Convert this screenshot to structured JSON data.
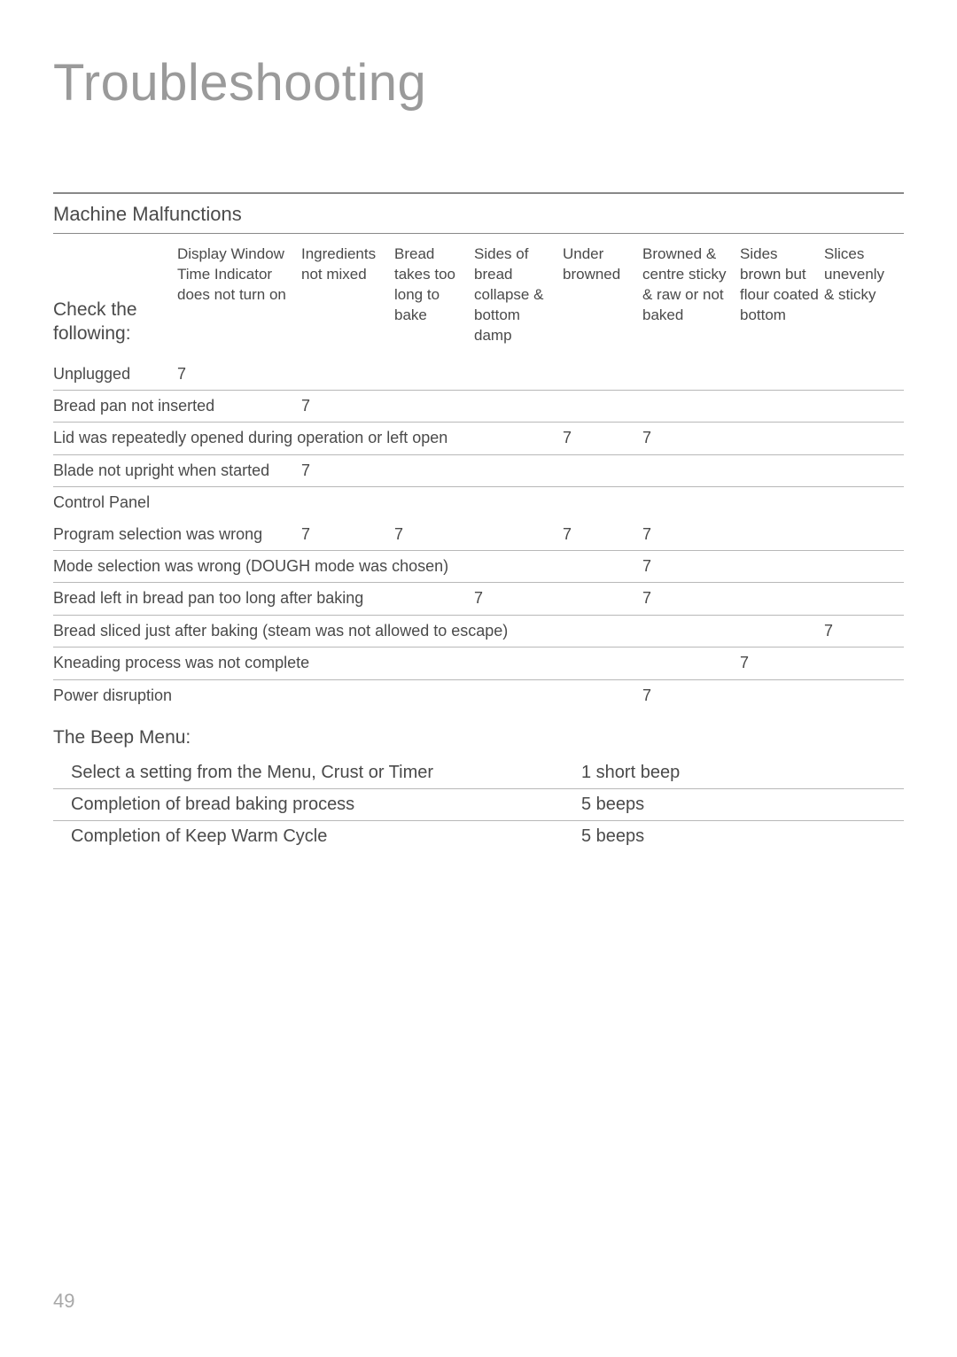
{
  "page": {
    "title": "Troubleshooting",
    "number": "49",
    "colors": {
      "title": "#9a9a9a",
      "text": "#4a4a4a",
      "rule": "#888888",
      "row_border": "#b8b8b8",
      "background": "#ffffff"
    },
    "fonts": {
      "title_size_pt": 44,
      "section_size_pt": 17,
      "header_size_pt": 13,
      "body_size_pt": 14,
      "pagenum_size_pt": 17
    }
  },
  "malfunctions": {
    "section_title": "Machine Malfunctions",
    "row_header": "Check the following:",
    "mark_glyph": "7",
    "columns": [
      "Display Window Time Indicator does not turn on",
      "Ingredients not mixed",
      "Bread takes too long to bake",
      "Sides of bread collapse & bottom damp",
      "Under browned",
      "Browned & centre sticky & raw or not baked",
      "Sides brown but flour coated bottom",
      "Slices unevenly & sticky"
    ],
    "groups": [
      {
        "rows": [
          {
            "label": "Unplugged",
            "marks": [
              true,
              false,
              false,
              false,
              false,
              false,
              false,
              false
            ]
          },
          {
            "label": "Bread pan not inserted",
            "marks": [
              false,
              true,
              false,
              false,
              false,
              false,
              false,
              false
            ]
          },
          {
            "label": "Lid was repeatedly opened during operation or left open",
            "marks": [
              false,
              false,
              false,
              false,
              true,
              true,
              false,
              false
            ]
          },
          {
            "label": "Blade not upright when started",
            "marks": [
              false,
              true,
              false,
              false,
              false,
              false,
              false,
              false
            ]
          }
        ]
      },
      {
        "title": "Control Panel",
        "rows": [
          {
            "label": "Program selection was wrong",
            "marks": [
              false,
              true,
              true,
              false,
              true,
              true,
              false,
              false
            ]
          },
          {
            "label": "Mode selection was wrong (DOUGH mode was chosen)",
            "marks": [
              false,
              false,
              false,
              false,
              false,
              true,
              false,
              false
            ]
          },
          {
            "label": "Bread left in bread pan too long after baking",
            "marks": [
              false,
              false,
              false,
              true,
              false,
              true,
              false,
              false
            ]
          },
          {
            "label": "Bread sliced just after baking (steam was not allowed to escape)",
            "marks": [
              false,
              false,
              false,
              false,
              false,
              false,
              false,
              true
            ]
          },
          {
            "label": "Kneading process was not complete",
            "marks": [
              false,
              false,
              false,
              false,
              false,
              false,
              true,
              false
            ]
          },
          {
            "label": "Power disruption",
            "marks": [
              false,
              false,
              false,
              false,
              false,
              true,
              false,
              false
            ]
          }
        ]
      }
    ]
  },
  "beep_menu": {
    "title": "The Beep Menu:",
    "rows": [
      {
        "event": "Select a setting from the Menu, Crust or Timer",
        "signal": "1 short beep"
      },
      {
        "event": "Completion of bread baking process",
        "signal": "5 beeps"
      },
      {
        "event": "Completion of Keep Warm Cycle",
        "signal": "5 beeps"
      }
    ]
  }
}
